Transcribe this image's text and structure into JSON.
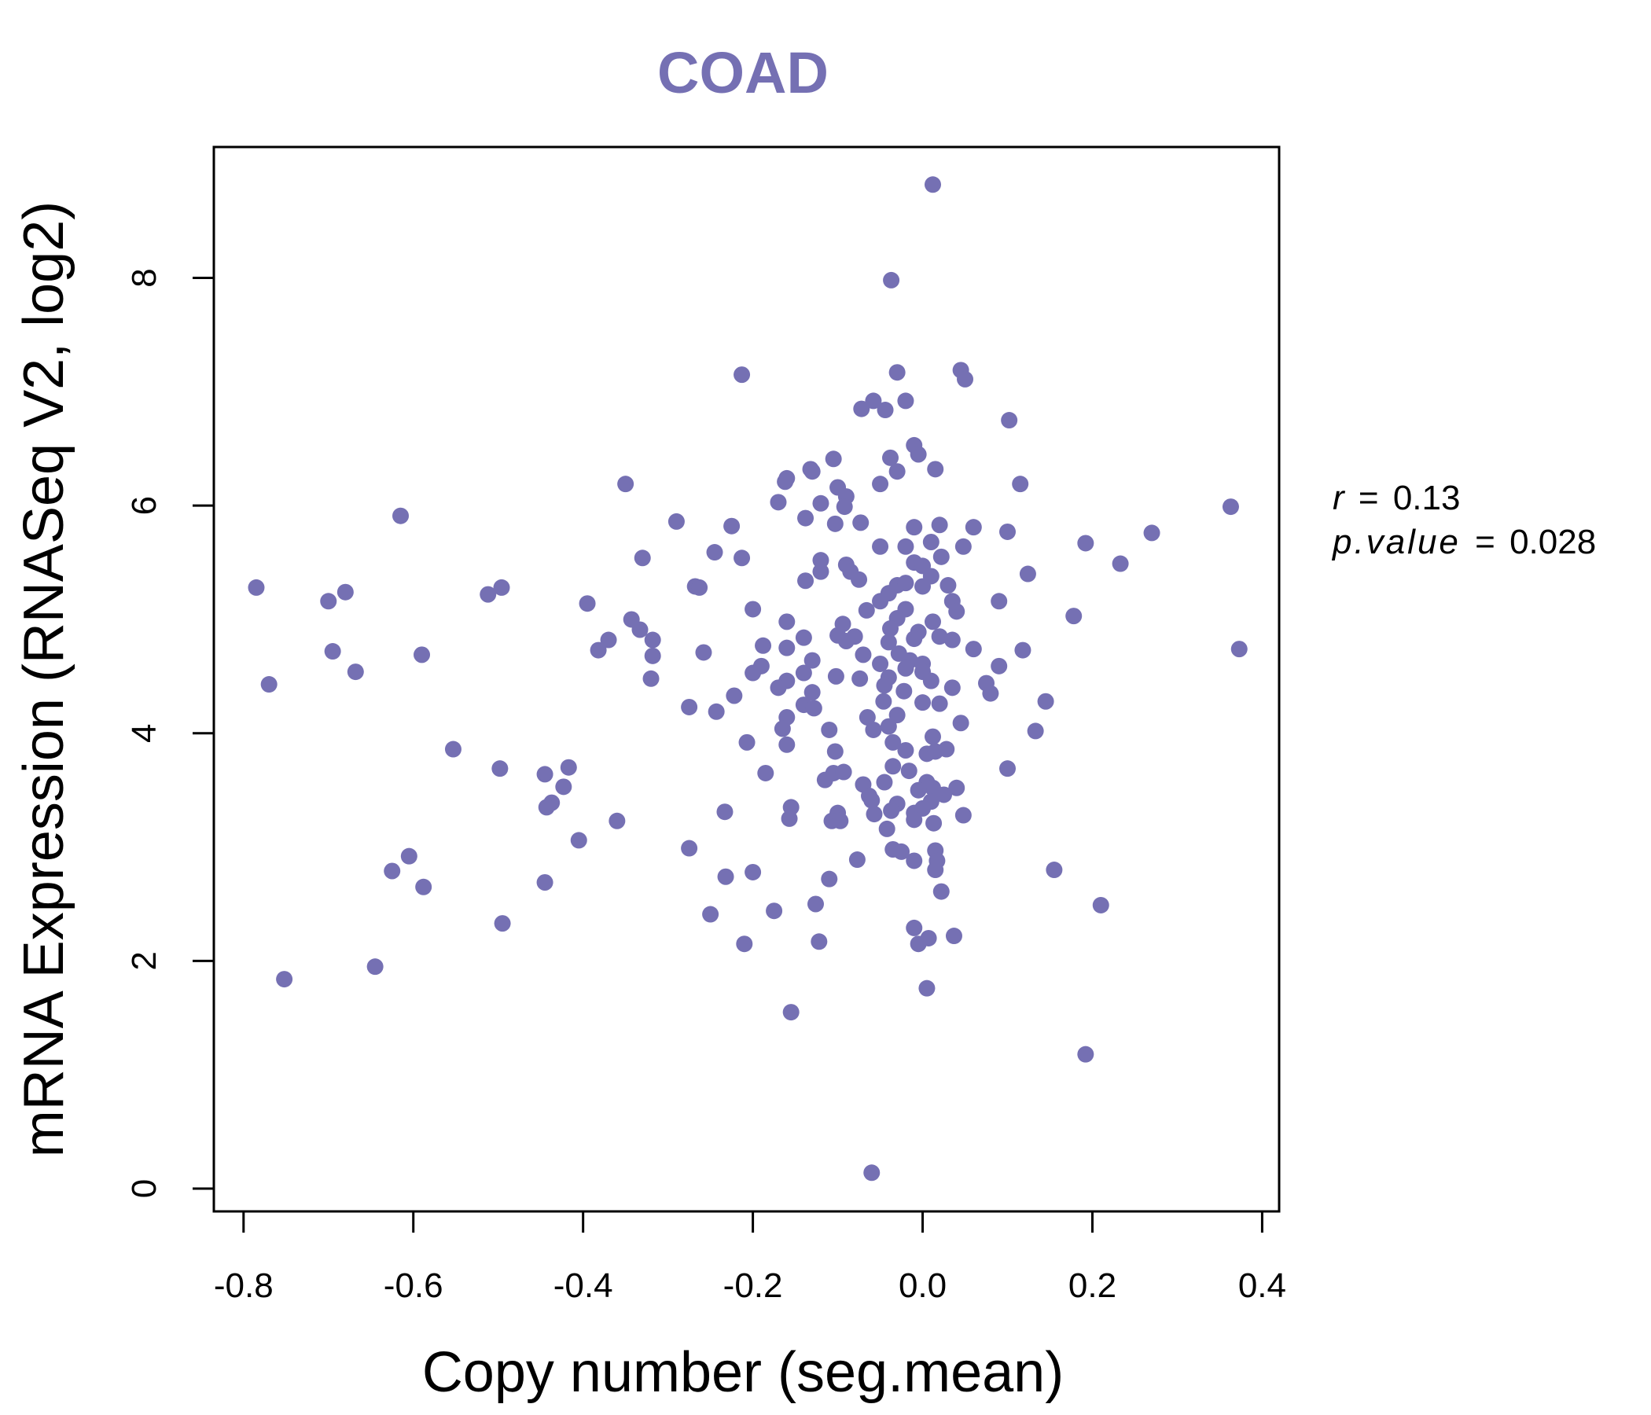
{
  "chart_data": {
    "type": "scatter",
    "title": "COAD",
    "xlabel": "Copy number (seg.mean)",
    "ylabel": "mRNA Expression (RNASeq V2, log2)",
    "xlim": [
      -0.835,
      0.42
    ],
    "ylim": [
      -0.2,
      9.15
    ],
    "xticks": [
      -0.8,
      -0.6,
      -0.4,
      -0.2,
      0.0,
      0.2,
      0.4
    ],
    "xtick_labels": [
      "-0.8",
      "-0.6",
      "-0.4",
      "-0.2",
      "0.0",
      "0.2",
      "0.4"
    ],
    "yticks": [
      0,
      2,
      4,
      6,
      8
    ],
    "ytick_labels": [
      "0",
      "2",
      "4",
      "6",
      "8"
    ],
    "grid": false,
    "point_color": "#7570b3",
    "title_color": "#7570b3",
    "annotation": {
      "r_symbol": "r",
      "r_value": "0.13",
      "p_symbol": "p.value",
      "p_value": "0.028",
      "equals": "="
    },
    "points": [
      [
        0.012,
        8.82
      ],
      [
        -0.037,
        7.98
      ],
      [
        -0.213,
        7.15
      ],
      [
        -0.03,
        7.17
      ],
      [
        0.045,
        7.19
      ],
      [
        0.05,
        7.11
      ],
      [
        -0.058,
        6.92
      ],
      [
        -0.072,
        6.85
      ],
      [
        -0.044,
        6.84
      ],
      [
        -0.02,
        6.92
      ],
      [
        0.102,
        6.75
      ],
      [
        -0.01,
        6.53
      ],
      [
        -0.005,
        6.45
      ],
      [
        -0.038,
        6.42
      ],
      [
        -0.03,
        6.3
      ],
      [
        0.015,
        6.32
      ],
      [
        -0.132,
        6.32
      ],
      [
        -0.13,
        6.3
      ],
      [
        -0.16,
        6.24
      ],
      [
        -0.162,
        6.21
      ],
      [
        -0.105,
        6.41
      ],
      [
        -0.1,
        6.16
      ],
      [
        -0.09,
        6.08
      ],
      [
        -0.092,
        5.99
      ],
      [
        -0.12,
        6.02
      ],
      [
        -0.17,
        6.03
      ],
      [
        -0.05,
        6.19
      ],
      [
        -0.35,
        6.19
      ],
      [
        0.115,
        6.19
      ],
      [
        0.363,
        5.99
      ],
      [
        -0.615,
        5.91
      ],
      [
        -0.29,
        5.86
      ],
      [
        -0.138,
        5.89
      ],
      [
        -0.103,
        5.84
      ],
      [
        -0.073,
        5.85
      ],
      [
        -0.225,
        5.82
      ],
      [
        -0.01,
        5.81
      ],
      [
        0.02,
        5.83
      ],
      [
        0.06,
        5.81
      ],
      [
        0.1,
        5.77
      ],
      [
        0.27,
        5.76
      ],
      [
        0.192,
        5.67
      ],
      [
        -0.05,
        5.64
      ],
      [
        -0.02,
        5.64
      ],
      [
        0.01,
        5.68
      ],
      [
        0.048,
        5.64
      ],
      [
        -0.245,
        5.59
      ],
      [
        -0.213,
        5.54
      ],
      [
        -0.33,
        5.54
      ],
      [
        -0.12,
        5.52
      ],
      [
        0.022,
        5.55
      ],
      [
        -0.01,
        5.5
      ],
      [
        0.0,
        5.47
      ],
      [
        0.233,
        5.49
      ],
      [
        -0.09,
        5.48
      ],
      [
        -0.085,
        5.42
      ],
      [
        -0.12,
        5.42
      ],
      [
        0.124,
        5.4
      ],
      [
        -0.075,
        5.35
      ],
      [
        -0.138,
        5.34
      ],
      [
        -0.03,
        5.3
      ],
      [
        -0.02,
        5.32
      ],
      [
        0.0,
        5.29
      ],
      [
        0.01,
        5.38
      ],
      [
        0.03,
        5.3
      ],
      [
        -0.268,
        5.29
      ],
      [
        -0.263,
        5.28
      ],
      [
        -0.785,
        5.28
      ],
      [
        -0.496,
        5.28
      ],
      [
        -0.512,
        5.22
      ],
      [
        -0.68,
        5.24
      ],
      [
        -0.7,
        5.16
      ],
      [
        -0.04,
        5.23
      ],
      [
        -0.05,
        5.16
      ],
      [
        0.035,
        5.16
      ],
      [
        0.09,
        5.16
      ],
      [
        -0.395,
        5.14
      ],
      [
        -0.2,
        5.09
      ],
      [
        -0.066,
        5.08
      ],
      [
        -0.02,
        5.09
      ],
      [
        0.04,
        5.07
      ],
      [
        0.178,
        5.03
      ],
      [
        -0.343,
        5.0
      ],
      [
        -0.16,
        4.98
      ],
      [
        -0.094,
        4.96
      ],
      [
        -0.03,
        5.01
      ],
      [
        0.012,
        4.98
      ],
      [
        -0.333,
        4.91
      ],
      [
        -0.14,
        4.84
      ],
      [
        -0.1,
        4.86
      ],
      [
        -0.08,
        4.85
      ],
      [
        -0.038,
        4.92
      ],
      [
        -0.005,
        4.89
      ],
      [
        0.02,
        4.85
      ],
      [
        -0.37,
        4.82
      ],
      [
        -0.318,
        4.82
      ],
      [
        -0.188,
        4.77
      ],
      [
        -0.16,
        4.75
      ],
      [
        -0.09,
        4.81
      ],
      [
        -0.04,
        4.8
      ],
      [
        -0.01,
        4.83
      ],
      [
        0.035,
        4.82
      ],
      [
        -0.382,
        4.73
      ],
      [
        -0.695,
        4.72
      ],
      [
        -0.59,
        4.69
      ],
      [
        -0.258,
        4.71
      ],
      [
        -0.318,
        4.68
      ],
      [
        -0.07,
        4.69
      ],
      [
        -0.028,
        4.7
      ],
      [
        -0.015,
        4.64
      ],
      [
        0.06,
        4.74
      ],
      [
        0.118,
        4.73
      ],
      [
        0.373,
        4.74
      ],
      [
        -0.13,
        4.64
      ],
      [
        -0.05,
        4.61
      ],
      [
        -0.02,
        4.57
      ],
      [
        0.0,
        4.61
      ],
      [
        0.09,
        4.59
      ],
      [
        -0.19,
        4.59
      ],
      [
        -0.2,
        4.53
      ],
      [
        -0.14,
        4.53
      ],
      [
        -0.102,
        4.5
      ],
      [
        -0.074,
        4.48
      ],
      [
        -0.04,
        4.49
      ],
      [
        0.0,
        4.54
      ],
      [
        0.01,
        4.46
      ],
      [
        -0.668,
        4.54
      ],
      [
        -0.32,
        4.48
      ],
      [
        -0.16,
        4.46
      ],
      [
        -0.17,
        4.4
      ],
      [
        -0.045,
        4.42
      ],
      [
        -0.022,
        4.37
      ],
      [
        0.035,
        4.4
      ],
      [
        0.075,
        4.44
      ],
      [
        0.08,
        4.35
      ],
      [
        -0.77,
        4.43
      ],
      [
        -0.222,
        4.33
      ],
      [
        -0.13,
        4.36
      ],
      [
        -0.14,
        4.25
      ],
      [
        -0.128,
        4.22
      ],
      [
        -0.046,
        4.28
      ],
      [
        0.0,
        4.27
      ],
      [
        0.02,
        4.26
      ],
      [
        0.145,
        4.28
      ],
      [
        -0.275,
        4.23
      ],
      [
        -0.243,
        4.19
      ],
      [
        -0.16,
        4.14
      ],
      [
        -0.065,
        4.14
      ],
      [
        -0.03,
        4.16
      ],
      [
        -0.165,
        4.04
      ],
      [
        -0.11,
        4.03
      ],
      [
        -0.058,
        4.03
      ],
      [
        -0.04,
        4.06
      ],
      [
        0.012,
        3.97
      ],
      [
        0.045,
        4.09
      ],
      [
        0.133,
        4.02
      ],
      [
        -0.207,
        3.92
      ],
      [
        -0.16,
        3.9
      ],
      [
        -0.035,
        3.92
      ],
      [
        -0.02,
        3.85
      ],
      [
        0.005,
        3.82
      ],
      [
        0.015,
        3.84
      ],
      [
        0.028,
        3.86
      ],
      [
        -0.553,
        3.86
      ],
      [
        -0.103,
        3.84
      ],
      [
        -0.105,
        3.65
      ],
      [
        -0.093,
        3.66
      ],
      [
        -0.185,
        3.65
      ],
      [
        -0.417,
        3.7
      ],
      [
        -0.498,
        3.69
      ],
      [
        -0.445,
        3.64
      ],
      [
        -0.035,
        3.71
      ],
      [
        -0.016,
        3.67
      ],
      [
        0.1,
        3.69
      ],
      [
        -0.115,
        3.59
      ],
      [
        -0.07,
        3.55
      ],
      [
        -0.045,
        3.57
      ],
      [
        0.005,
        3.57
      ],
      [
        0.012,
        3.52
      ],
      [
        0.04,
        3.52
      ],
      [
        -0.423,
        3.53
      ],
      [
        -0.063,
        3.45
      ],
      [
        -0.06,
        3.41
      ],
      [
        -0.03,
        3.38
      ],
      [
        -0.005,
        3.5
      ],
      [
        0.01,
        3.4
      ],
      [
        0.025,
        3.46
      ],
      [
        -0.437,
        3.39
      ],
      [
        -0.443,
        3.35
      ],
      [
        -0.155,
        3.35
      ],
      [
        -0.037,
        3.32
      ],
      [
        -0.057,
        3.29
      ],
      [
        -0.01,
        3.3
      ],
      [
        0.0,
        3.34
      ],
      [
        -0.233,
        3.31
      ],
      [
        -0.157,
        3.25
      ],
      [
        -0.1,
        3.3
      ],
      [
        -0.107,
        3.23
      ],
      [
        -0.097,
        3.23
      ],
      [
        -0.01,
        3.24
      ],
      [
        0.013,
        3.21
      ],
      [
        0.048,
        3.28
      ],
      [
        -0.36,
        3.23
      ],
      [
        -0.042,
        3.16
      ],
      [
        -0.405,
        3.06
      ],
      [
        -0.275,
        2.99
      ],
      [
        -0.035,
        2.98
      ],
      [
        -0.025,
        2.96
      ],
      [
        0.015,
        2.97
      ],
      [
        0.017,
        2.88
      ],
      [
        -0.605,
        2.92
      ],
      [
        -0.077,
        2.89
      ],
      [
        -0.01,
        2.88
      ],
      [
        -0.625,
        2.79
      ],
      [
        -0.2,
        2.78
      ],
      [
        -0.232,
        2.74
      ],
      [
        -0.11,
        2.72
      ],
      [
        0.015,
        2.8
      ],
      [
        0.155,
        2.8
      ],
      [
        -0.588,
        2.65
      ],
      [
        -0.445,
        2.69
      ],
      [
        0.022,
        2.61
      ],
      [
        -0.126,
        2.5
      ],
      [
        -0.175,
        2.44
      ],
      [
        -0.25,
        2.41
      ],
      [
        0.21,
        2.49
      ],
      [
        -0.495,
        2.33
      ],
      [
        -0.01,
        2.29
      ],
      [
        -0.122,
        2.17
      ],
      [
        -0.21,
        2.15
      ],
      [
        -0.005,
        2.15
      ],
      [
        0.007,
        2.2
      ],
      [
        0.037,
        2.22
      ],
      [
        -0.645,
        1.95
      ],
      [
        -0.752,
        1.84
      ],
      [
        0.005,
        1.76
      ],
      [
        -0.155,
        1.55
      ],
      [
        0.192,
        1.18
      ],
      [
        -0.06,
        0.14
      ]
    ]
  }
}
